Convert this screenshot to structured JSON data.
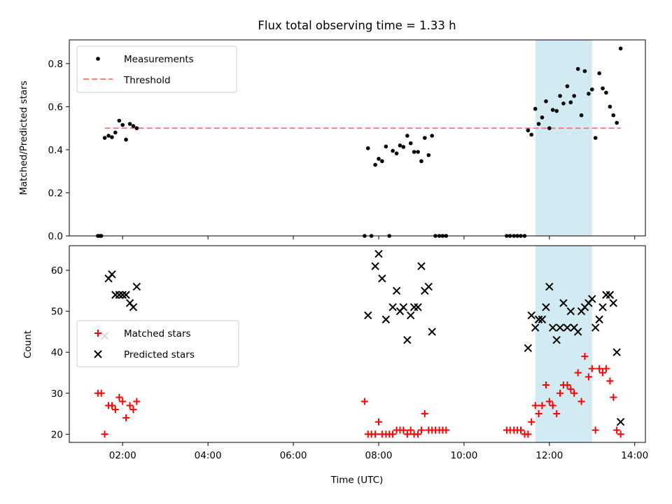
{
  "chart_data": {
    "type": "scatter",
    "title": "Flux total observing time = 1.33 h",
    "xlabel": "Time (UTC)",
    "xlim_hours": [
      0.75,
      14.25
    ],
    "xticks": [
      2,
      4,
      6,
      8,
      10,
      12,
      14
    ],
    "xtick_labels": [
      "02:00",
      "04:00",
      "06:00",
      "08:00",
      "10:00",
      "12:00",
      "14:00"
    ],
    "highlight_span_hours": [
      11.67,
      13.0
    ],
    "colors": {
      "highlight": "#add8e6",
      "threshold": "#ff7f7f",
      "matched": "#ff0000",
      "predicted": "#000000",
      "measure": "#000000"
    },
    "top": {
      "ylabel": "Matched/Predicted stars",
      "ylim": [
        0.0,
        0.91
      ],
      "yticks": [
        0.0,
        0.2,
        0.4,
        0.6,
        0.8
      ],
      "ytick_labels": [
        "0.0",
        "0.2",
        "0.4",
        "0.6",
        "0.8"
      ],
      "legend": {
        "position": "upper-left",
        "measurements": "Measurements",
        "threshold": "Threshold"
      },
      "threshold": {
        "x": [
          1.58,
          13.67
        ],
        "y": 0.5
      },
      "measurements": [
        [
          1.42,
          0.0
        ],
        [
          1.47,
          0.0
        ],
        [
          1.5,
          0.0
        ],
        [
          1.58,
          0.455
        ],
        [
          1.67,
          0.465
        ],
        [
          1.75,
          0.458
        ],
        [
          1.83,
          0.48
        ],
        [
          1.92,
          0.535
        ],
        [
          2.0,
          0.515
        ],
        [
          2.08,
          0.447
        ],
        [
          2.17,
          0.52
        ],
        [
          2.25,
          0.51
        ],
        [
          2.33,
          0.5
        ],
        [
          7.67,
          0.0
        ],
        [
          7.75,
          0.407
        ],
        [
          7.83,
          0.0
        ],
        [
          7.92,
          0.33
        ],
        [
          8.0,
          0.358
        ],
        [
          8.08,
          0.347
        ],
        [
          8.17,
          0.415
        ],
        [
          8.25,
          0.0
        ],
        [
          8.33,
          0.395
        ],
        [
          8.42,
          0.383
        ],
        [
          8.5,
          0.42
        ],
        [
          8.58,
          0.413
        ],
        [
          8.67,
          0.465
        ],
        [
          8.75,
          0.43
        ],
        [
          8.83,
          0.39
        ],
        [
          8.92,
          0.39
        ],
        [
          9.0,
          0.347
        ],
        [
          9.08,
          0.455
        ],
        [
          9.17,
          0.375
        ],
        [
          9.25,
          0.465
        ],
        [
          9.33,
          0.0
        ],
        [
          9.42,
          0.0
        ],
        [
          9.5,
          0.0
        ],
        [
          9.58,
          0.0
        ],
        [
          11.0,
          0.0
        ],
        [
          11.08,
          0.0
        ],
        [
          11.17,
          0.0
        ],
        [
          11.25,
          0.0
        ],
        [
          11.33,
          0.0
        ],
        [
          11.42,
          0.0
        ],
        [
          11.5,
          0.49
        ],
        [
          11.58,
          0.47
        ],
        [
          11.67,
          0.59
        ],
        [
          11.75,
          0.52
        ],
        [
          11.83,
          0.55
        ],
        [
          11.92,
          0.625
        ],
        [
          12.0,
          0.5
        ],
        [
          12.08,
          0.585
        ],
        [
          12.17,
          0.58
        ],
        [
          12.25,
          0.65
        ],
        [
          12.33,
          0.615
        ],
        [
          12.42,
          0.695
        ],
        [
          12.5,
          0.62
        ],
        [
          12.58,
          0.65
        ],
        [
          12.67,
          0.775
        ],
        [
          12.75,
          0.56
        ],
        [
          12.83,
          0.765
        ],
        [
          12.92,
          0.66
        ],
        [
          13.0,
          0.68
        ],
        [
          13.08,
          0.455
        ],
        [
          13.17,
          0.755
        ],
        [
          13.25,
          0.685
        ],
        [
          13.33,
          0.665
        ],
        [
          13.42,
          0.6
        ],
        [
          13.5,
          0.56
        ],
        [
          13.58,
          0.525
        ],
        [
          13.67,
          0.87
        ]
      ]
    },
    "bottom": {
      "ylabel": "Count",
      "ylim": [
        18,
        66
      ],
      "yticks": [
        20,
        30,
        40,
        50,
        60
      ],
      "ytick_labels": [
        "20",
        "30",
        "40",
        "50",
        "60"
      ],
      "legend": {
        "position": "center-left",
        "matched": "Matched stars",
        "predicted": "Predicted stars"
      },
      "matched": [
        [
          1.42,
          30
        ],
        [
          1.5,
          30
        ],
        [
          1.58,
          20
        ],
        [
          1.67,
          27
        ],
        [
          1.75,
          27
        ],
        [
          1.83,
          26
        ],
        [
          1.92,
          29
        ],
        [
          2.0,
          28
        ],
        [
          2.08,
          24
        ],
        [
          2.17,
          27
        ],
        [
          2.25,
          26
        ],
        [
          2.33,
          28
        ],
        [
          7.67,
          28
        ],
        [
          7.75,
          20
        ],
        [
          7.83,
          20
        ],
        [
          7.92,
          20
        ],
        [
          8.0,
          23
        ],
        [
          8.08,
          20
        ],
        [
          8.17,
          20
        ],
        [
          8.25,
          20
        ],
        [
          8.33,
          20
        ],
        [
          8.42,
          21
        ],
        [
          8.5,
          21
        ],
        [
          8.58,
          21
        ],
        [
          8.67,
          20
        ],
        [
          8.75,
          21
        ],
        [
          8.83,
          20
        ],
        [
          8.92,
          20
        ],
        [
          9.0,
          21
        ],
        [
          9.08,
          25
        ],
        [
          9.17,
          21
        ],
        [
          9.25,
          21
        ],
        [
          9.33,
          21
        ],
        [
          9.42,
          21
        ],
        [
          9.5,
          21
        ],
        [
          9.58,
          21
        ],
        [
          11.0,
          21
        ],
        [
          11.08,
          21
        ],
        [
          11.17,
          21
        ],
        [
          11.25,
          21
        ],
        [
          11.33,
          21
        ],
        [
          11.42,
          20
        ],
        [
          11.5,
          20
        ],
        [
          11.58,
          23
        ],
        [
          11.67,
          27
        ],
        [
          11.75,
          25
        ],
        [
          11.83,
          27
        ],
        [
          11.92,
          32
        ],
        [
          12.0,
          28
        ],
        [
          12.08,
          27
        ],
        [
          12.17,
          25
        ],
        [
          12.25,
          30
        ],
        [
          12.33,
          32
        ],
        [
          12.42,
          32
        ],
        [
          12.5,
          31
        ],
        [
          12.58,
          30
        ],
        [
          12.67,
          35
        ],
        [
          12.75,
          28
        ],
        [
          12.83,
          39
        ],
        [
          12.92,
          34
        ],
        [
          13.0,
          36
        ],
        [
          13.08,
          21
        ],
        [
          13.17,
          36
        ],
        [
          13.25,
          35
        ],
        [
          13.33,
          36
        ],
        [
          13.42,
          33
        ],
        [
          13.5,
          29
        ],
        [
          13.58,
          21
        ],
        [
          13.67,
          20
        ]
      ],
      "predicted": [
        [
          1.58,
          44
        ],
        [
          1.67,
          58
        ],
        [
          1.75,
          59
        ],
        [
          1.83,
          54
        ],
        [
          1.92,
          54
        ],
        [
          2.0,
          54
        ],
        [
          2.08,
          54
        ],
        [
          2.17,
          52
        ],
        [
          2.25,
          51
        ],
        [
          2.33,
          56
        ],
        [
          7.75,
          49
        ],
        [
          7.92,
          61
        ],
        [
          8.0,
          64
        ],
        [
          8.08,
          58
        ],
        [
          8.17,
          48
        ],
        [
          8.33,
          51
        ],
        [
          8.42,
          55
        ],
        [
          8.5,
          50
        ],
        [
          8.58,
          51
        ],
        [
          8.67,
          43
        ],
        [
          8.75,
          49
        ],
        [
          8.83,
          51
        ],
        [
          8.92,
          51
        ],
        [
          9.0,
          61
        ],
        [
          9.08,
          55
        ],
        [
          9.17,
          56
        ],
        [
          9.25,
          45
        ],
        [
          11.5,
          41
        ],
        [
          11.58,
          49
        ],
        [
          11.67,
          46
        ],
        [
          11.75,
          48
        ],
        [
          11.83,
          48
        ],
        [
          11.92,
          51
        ],
        [
          12.0,
          56
        ],
        [
          12.08,
          46
        ],
        [
          12.17,
          43
        ],
        [
          12.25,
          46
        ],
        [
          12.33,
          52
        ],
        [
          12.42,
          46
        ],
        [
          12.5,
          50
        ],
        [
          12.58,
          46
        ],
        [
          12.67,
          45
        ],
        [
          12.75,
          50
        ],
        [
          12.83,
          51
        ],
        [
          12.92,
          52
        ],
        [
          13.0,
          53
        ],
        [
          13.08,
          46
        ],
        [
          13.17,
          48
        ],
        [
          13.25,
          51
        ],
        [
          13.33,
          54
        ],
        [
          13.42,
          54
        ],
        [
          13.5,
          52
        ],
        [
          13.58,
          40
        ],
        [
          13.67,
          23
        ]
      ]
    }
  }
}
